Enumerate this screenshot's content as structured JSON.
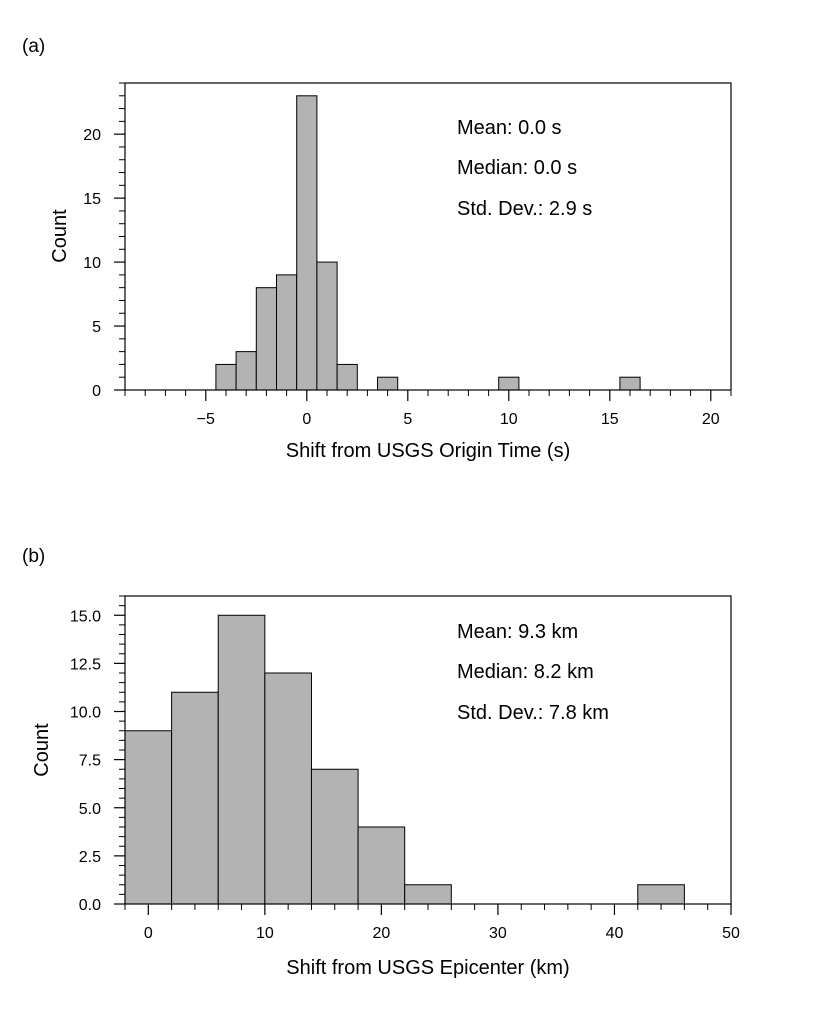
{
  "chart_data": [
    {
      "type": "bar",
      "panel_label": "(a)",
      "xlabel": "Shift from USGS Origin Time (s)",
      "ylabel": "Count",
      "xlim": [
        -9,
        21
      ],
      "ylim": [
        0,
        24
      ],
      "x_ticks": [
        -5,
        0,
        5,
        10,
        15,
        20
      ],
      "x_tick_labels": [
        "−5",
        "0",
        "5",
        "10",
        "15",
        "20"
      ],
      "x_minor_step": 1,
      "y_ticks": [
        0,
        5,
        10,
        15,
        20
      ],
      "y_tick_labels": [
        "0",
        "5",
        "10",
        "15",
        "20"
      ],
      "y_minor_step": 1,
      "bin_width": 1,
      "bins": [
        {
          "left": -4.5,
          "count": 2
        },
        {
          "left": -3.5,
          "count": 3
        },
        {
          "left": -2.5,
          "count": 8
        },
        {
          "left": -1.5,
          "count": 9
        },
        {
          "left": -0.5,
          "count": 23
        },
        {
          "left": 0.5,
          "count": 10
        },
        {
          "left": 1.5,
          "count": 2
        },
        {
          "left": 3.5,
          "count": 1
        },
        {
          "left": 9.5,
          "count": 1
        },
        {
          "left": 15.5,
          "count": 1
        }
      ],
      "stats": [
        "Mean: 0.0 s",
        "Median: 0.0 s",
        "Std. Dev.: 2.9 s"
      ],
      "bar_color": "#b3b3b3"
    },
    {
      "type": "bar",
      "panel_label": "(b)",
      "xlabel": "Shift from USGS Epicenter (km)",
      "ylabel": "Count",
      "xlim": [
        -2,
        50
      ],
      "ylim": [
        0,
        16
      ],
      "x_ticks": [
        0,
        10,
        20,
        30,
        40,
        50
      ],
      "x_tick_labels": [
        "0",
        "10",
        "20",
        "30",
        "40",
        "50"
      ],
      "x_minor_step": 2,
      "y_ticks": [
        0,
        2.5,
        5,
        7.5,
        10,
        12.5,
        15
      ],
      "y_tick_labels": [
        "0.0",
        "2.5",
        "5.0",
        "7.5",
        "10.0",
        "12.5",
        "15.0"
      ],
      "y_minor_step": 0.5,
      "bin_width": 4,
      "bins": [
        {
          "left": -2,
          "count": 9
        },
        {
          "left": 2,
          "count": 11
        },
        {
          "left": 6,
          "count": 15
        },
        {
          "left": 10,
          "count": 12
        },
        {
          "left": 14,
          "count": 7
        },
        {
          "left": 18,
          "count": 4
        },
        {
          "left": 22,
          "count": 1
        },
        {
          "left": 42,
          "count": 1
        }
      ],
      "stats": [
        "Mean: 9.3 km",
        "Median: 8.2 km",
        "Std. Dev.: 7.8 km"
      ],
      "bar_color": "#b3b3b3"
    }
  ]
}
